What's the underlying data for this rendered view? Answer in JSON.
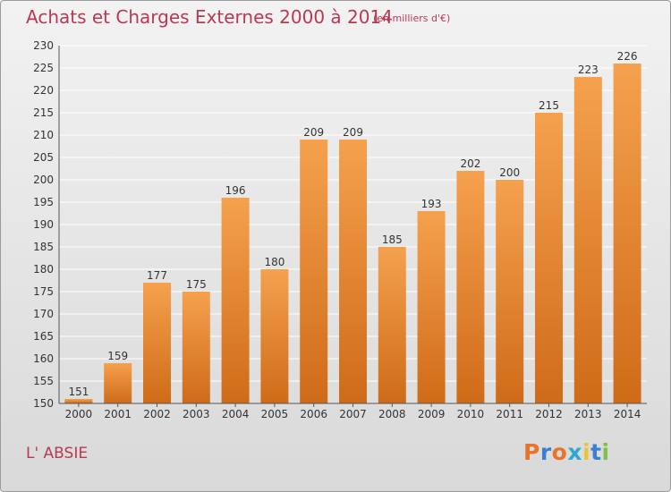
{
  "chart_data": {
    "type": "bar",
    "title": "Achats et Charges Externes 2000 à 2014",
    "subtitle": "(en milliers d'€)",
    "categories": [
      "2000",
      "2001",
      "2002",
      "2003",
      "2004",
      "2005",
      "2006",
      "2007",
      "2008",
      "2009",
      "2010",
      "2011",
      "2012",
      "2013",
      "2014"
    ],
    "values": [
      151,
      159,
      177,
      175,
      196,
      180,
      209,
      209,
      185,
      193,
      202,
      200,
      215,
      223,
      226
    ],
    "ylim": [
      150,
      230
    ],
    "yticks": [
      150,
      155,
      160,
      165,
      170,
      175,
      180,
      185,
      190,
      195,
      200,
      205,
      210,
      215,
      220,
      225,
      230
    ],
    "grid": true,
    "bar_color_top": "#f5a14e",
    "bar_color_bottom": "#cf6b18"
  },
  "footer": {
    "commune": "L' ABSIE",
    "logo_letters": [
      "P",
      "r",
      "o",
      "x",
      "i",
      "t",
      "i"
    ],
    "logo_colors": [
      "#e8732a",
      "#3b7fd1",
      "#e8732a",
      "#2da9cf",
      "#e8c43a",
      "#3b7fd1",
      "#7cc244"
    ]
  },
  "colors": {
    "title": "#b73a53",
    "grid": "#ffffff"
  }
}
